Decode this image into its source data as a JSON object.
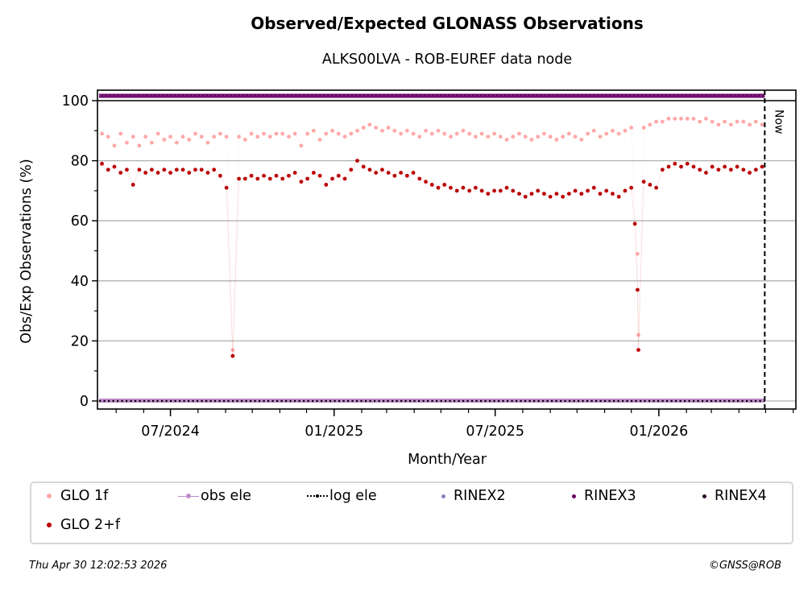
{
  "chart_data": {
    "type": "scatter",
    "title": "Observed/Expected GLONASS Observations",
    "subtitle": "ALKS00LVA - ROB-EUREF data node",
    "xlabel": "Month/Year",
    "ylabel": "Obs/Exp Observations (%)",
    "ylim": [
      -0.5,
      103
    ],
    "xlim": [
      "2024-04-10",
      "2026-06-04"
    ],
    "yticks": [
      0,
      20,
      40,
      60,
      80,
      100
    ],
    "xticks": [
      {
        "date": "2024-07-01",
        "label": "07/2024"
      },
      {
        "date": "2025-01-01",
        "label": "01/2025"
      },
      {
        "date": "2025-07-01",
        "label": "07/2025"
      },
      {
        "date": "2026-01-01",
        "label": "01/2026"
      }
    ],
    "grid": "horizontal",
    "now": {
      "date": "2026-04-30",
      "label": "Now"
    },
    "legend_position": "bottom",
    "series": [
      {
        "name": "GLO 1f",
        "color": "#ffa8a8",
        "points": [
          [
            "2024-04-15",
            89
          ],
          [
            "2024-04-22",
            88
          ],
          [
            "2024-04-29",
            85
          ],
          [
            "2024-05-06",
            89
          ],
          [
            "2024-05-13",
            86
          ],
          [
            "2024-05-20",
            88
          ],
          [
            "2024-05-27",
            85
          ],
          [
            "2024-06-03",
            88
          ],
          [
            "2024-06-10",
            86
          ],
          [
            "2024-06-17",
            89
          ],
          [
            "2024-06-24",
            87
          ],
          [
            "2024-07-01",
            88
          ],
          [
            "2024-07-08",
            86
          ],
          [
            "2024-07-15",
            88
          ],
          [
            "2024-07-22",
            87
          ],
          [
            "2024-07-29",
            89
          ],
          [
            "2024-08-05",
            88
          ],
          [
            "2024-08-12",
            86
          ],
          [
            "2024-08-19",
            88
          ],
          [
            "2024-08-26",
            89
          ],
          [
            "2024-09-02",
            88
          ],
          [
            "2024-09-09",
            17
          ],
          [
            "2024-09-16",
            88
          ],
          [
            "2024-09-23",
            87
          ],
          [
            "2024-09-30",
            89
          ],
          [
            "2024-10-07",
            88
          ],
          [
            "2024-10-14",
            89
          ],
          [
            "2024-10-21",
            88
          ],
          [
            "2024-10-28",
            89
          ],
          [
            "2024-11-04",
            89
          ],
          [
            "2024-11-11",
            88
          ],
          [
            "2024-11-18",
            89
          ],
          [
            "2024-11-25",
            85
          ],
          [
            "2024-12-02",
            89
          ],
          [
            "2024-12-09",
            90
          ],
          [
            "2024-12-16",
            87
          ],
          [
            "2024-12-23",
            89
          ],
          [
            "2024-12-30",
            90
          ],
          [
            "2025-01-06",
            89
          ],
          [
            "2025-01-13",
            88
          ],
          [
            "2025-01-20",
            89
          ],
          [
            "2025-01-27",
            90
          ],
          [
            "2025-02-03",
            91
          ],
          [
            "2025-02-10",
            92
          ],
          [
            "2025-02-17",
            91
          ],
          [
            "2025-02-24",
            90
          ],
          [
            "2025-03-03",
            91
          ],
          [
            "2025-03-10",
            90
          ],
          [
            "2025-03-17",
            89
          ],
          [
            "2025-03-24",
            90
          ],
          [
            "2025-03-31",
            89
          ],
          [
            "2025-04-07",
            88
          ],
          [
            "2025-04-14",
            90
          ],
          [
            "2025-04-21",
            89
          ],
          [
            "2025-04-28",
            90
          ],
          [
            "2025-05-05",
            89
          ],
          [
            "2025-05-12",
            88
          ],
          [
            "2025-05-19",
            89
          ],
          [
            "2025-05-26",
            90
          ],
          [
            "2025-06-02",
            89
          ],
          [
            "2025-06-09",
            88
          ],
          [
            "2025-06-16",
            89
          ],
          [
            "2025-06-23",
            88
          ],
          [
            "2025-06-30",
            89
          ],
          [
            "2025-07-07",
            88
          ],
          [
            "2025-07-14",
            87
          ],
          [
            "2025-07-21",
            88
          ],
          [
            "2025-07-28",
            89
          ],
          [
            "2025-08-04",
            88
          ],
          [
            "2025-08-11",
            87
          ],
          [
            "2025-08-18",
            88
          ],
          [
            "2025-08-25",
            89
          ],
          [
            "2025-09-01",
            88
          ],
          [
            "2025-09-08",
            87
          ],
          [
            "2025-09-15",
            88
          ],
          [
            "2025-09-22",
            89
          ],
          [
            "2025-09-29",
            88
          ],
          [
            "2025-10-06",
            87
          ],
          [
            "2025-10-13",
            89
          ],
          [
            "2025-10-20",
            90
          ],
          [
            "2025-10-27",
            88
          ],
          [
            "2025-11-03",
            89
          ],
          [
            "2025-11-10",
            90
          ],
          [
            "2025-11-17",
            89
          ],
          [
            "2025-11-24",
            90
          ],
          [
            "2025-12-01",
            91
          ],
          [
            "2025-12-08",
            49
          ],
          [
            "2025-12-09",
            22
          ],
          [
            "2025-12-15",
            91
          ],
          [
            "2025-12-22",
            92
          ],
          [
            "2025-12-29",
            93
          ],
          [
            "2026-01-05",
            93
          ],
          [
            "2026-01-12",
            94
          ],
          [
            "2026-01-19",
            94
          ],
          [
            "2026-01-26",
            94
          ],
          [
            "2026-02-02",
            94
          ],
          [
            "2026-02-09",
            94
          ],
          [
            "2026-02-16",
            93
          ],
          [
            "2026-02-23",
            94
          ],
          [
            "2026-03-02",
            93
          ],
          [
            "2026-03-09",
            92
          ],
          [
            "2026-03-16",
            93
          ],
          [
            "2026-03-23",
            92
          ],
          [
            "2026-03-30",
            93
          ],
          [
            "2026-04-06",
            93
          ],
          [
            "2026-04-13",
            92
          ],
          [
            "2026-04-20",
            93
          ],
          [
            "2026-04-27",
            92
          ]
        ]
      },
      {
        "name": "GLO 2+f",
        "color": "#bb0000",
        "points": [
          [
            "2024-04-15",
            79
          ],
          [
            "2024-04-22",
            77
          ],
          [
            "2024-04-29",
            78
          ],
          [
            "2024-05-06",
            76
          ],
          [
            "2024-05-13",
            77
          ],
          [
            "2024-05-20",
            72
          ],
          [
            "2024-05-27",
            77
          ],
          [
            "2024-06-03",
            76
          ],
          [
            "2024-06-10",
            77
          ],
          [
            "2024-06-17",
            76
          ],
          [
            "2024-06-24",
            77
          ],
          [
            "2024-07-01",
            76
          ],
          [
            "2024-07-08",
            77
          ],
          [
            "2024-07-15",
            77
          ],
          [
            "2024-07-22",
            76
          ],
          [
            "2024-07-29",
            77
          ],
          [
            "2024-08-05",
            77
          ],
          [
            "2024-08-12",
            76
          ],
          [
            "2024-08-19",
            77
          ],
          [
            "2024-08-26",
            75
          ],
          [
            "2024-09-02",
            71
          ],
          [
            "2024-09-09",
            15
          ],
          [
            "2024-09-16",
            74
          ],
          [
            "2024-09-23",
            74
          ],
          [
            "2024-09-30",
            75
          ],
          [
            "2024-10-07",
            74
          ],
          [
            "2024-10-14",
            75
          ],
          [
            "2024-10-21",
            74
          ],
          [
            "2024-10-28",
            75
          ],
          [
            "2024-11-04",
            74
          ],
          [
            "2024-11-11",
            75
          ],
          [
            "2024-11-18",
            76
          ],
          [
            "2024-11-25",
            73
          ],
          [
            "2024-12-02",
            74
          ],
          [
            "2024-12-09",
            76
          ],
          [
            "2024-12-16",
            75
          ],
          [
            "2024-12-23",
            72
          ],
          [
            "2024-12-30",
            74
          ],
          [
            "2025-01-06",
            75
          ],
          [
            "2025-01-13",
            74
          ],
          [
            "2025-01-20",
            77
          ],
          [
            "2025-01-27",
            80
          ],
          [
            "2025-02-03",
            78
          ],
          [
            "2025-02-10",
            77
          ],
          [
            "2025-02-17",
            76
          ],
          [
            "2025-02-24",
            77
          ],
          [
            "2025-03-03",
            76
          ],
          [
            "2025-03-10",
            75
          ],
          [
            "2025-03-17",
            76
          ],
          [
            "2025-03-24",
            75
          ],
          [
            "2025-03-31",
            76
          ],
          [
            "2025-04-07",
            74
          ],
          [
            "2025-04-14",
            73
          ],
          [
            "2025-04-21",
            72
          ],
          [
            "2025-04-28",
            71
          ],
          [
            "2025-05-05",
            72
          ],
          [
            "2025-05-12",
            71
          ],
          [
            "2025-05-19",
            70
          ],
          [
            "2025-05-26",
            71
          ],
          [
            "2025-06-02",
            70
          ],
          [
            "2025-06-09",
            71
          ],
          [
            "2025-06-16",
            70
          ],
          [
            "2025-06-23",
            69
          ],
          [
            "2025-06-30",
            70
          ],
          [
            "2025-07-07",
            70
          ],
          [
            "2025-07-14",
            71
          ],
          [
            "2025-07-21",
            70
          ],
          [
            "2025-07-28",
            69
          ],
          [
            "2025-08-04",
            68
          ],
          [
            "2025-08-11",
            69
          ],
          [
            "2025-08-18",
            70
          ],
          [
            "2025-08-25",
            69
          ],
          [
            "2025-09-01",
            68
          ],
          [
            "2025-09-08",
            69
          ],
          [
            "2025-09-15",
            68
          ],
          [
            "2025-09-22",
            69
          ],
          [
            "2025-09-29",
            70
          ],
          [
            "2025-10-06",
            69
          ],
          [
            "2025-10-13",
            70
          ],
          [
            "2025-10-20",
            71
          ],
          [
            "2025-10-27",
            69
          ],
          [
            "2025-11-03",
            70
          ],
          [
            "2025-11-10",
            69
          ],
          [
            "2025-11-17",
            68
          ],
          [
            "2025-11-24",
            70
          ],
          [
            "2025-12-01",
            71
          ],
          [
            "2025-12-05",
            59
          ],
          [
            "2025-12-08",
            37
          ],
          [
            "2025-12-09",
            17
          ],
          [
            "2025-12-15",
            73
          ],
          [
            "2025-12-22",
            72
          ],
          [
            "2025-12-29",
            71
          ],
          [
            "2026-01-05",
            77
          ],
          [
            "2026-01-12",
            78
          ],
          [
            "2026-01-19",
            79
          ],
          [
            "2026-01-26",
            78
          ],
          [
            "2026-02-02",
            79
          ],
          [
            "2026-02-09",
            78
          ],
          [
            "2026-02-16",
            77
          ],
          [
            "2026-02-23",
            76
          ],
          [
            "2026-03-02",
            78
          ],
          [
            "2026-03-09",
            77
          ],
          [
            "2026-03-16",
            78
          ],
          [
            "2026-03-23",
            77
          ],
          [
            "2026-03-30",
            78
          ],
          [
            "2026-04-06",
            77
          ],
          [
            "2026-04-13",
            76
          ],
          [
            "2026-04-20",
            77
          ],
          [
            "2026-04-27",
            78
          ]
        ]
      },
      {
        "name": "obs ele",
        "color": "#c08ccc",
        "value": 0
      },
      {
        "name": "log ele",
        "color": "#000000",
        "value": 0
      },
      {
        "name": "RINEX2",
        "color": "#8c7fbf"
      },
      {
        "name": "RINEX3",
        "color": "#6a006a",
        "value": 101.5
      },
      {
        "name": "RINEX4",
        "color": "#2a0a2a"
      }
    ]
  },
  "legend": [
    {
      "label": "GLO 1f",
      "color": "#ffa8a8",
      "style": "dot"
    },
    {
      "label": "obs ele",
      "color": "#c08ccc",
      "style": "line-dot"
    },
    {
      "label": "log ele",
      "color": "#000000",
      "style": "dotted-dot"
    },
    {
      "label": "RINEX2",
      "color": "#8c7fbf",
      "style": "dot"
    },
    {
      "label": "RINEX3",
      "color": "#6a006a",
      "style": "dot"
    },
    {
      "label": "RINEX4",
      "color": "#2a0a2a",
      "style": "dot"
    },
    {
      "label": "GLO 2+f",
      "color": "#bb0000",
      "style": "dot"
    }
  ],
  "footer": {
    "timestamp": "Thu Apr 30 12:02:53 2026",
    "credit": "©GNSS@ROB"
  }
}
